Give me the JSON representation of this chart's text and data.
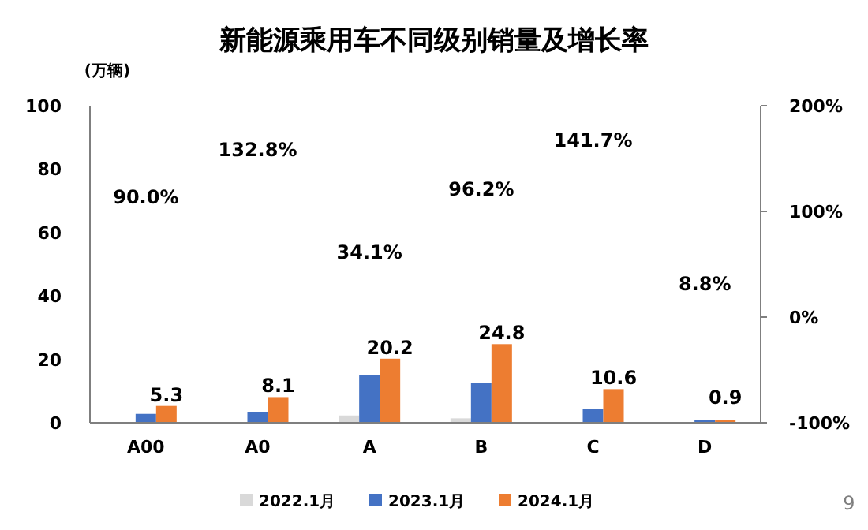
{
  "chart_data": {
    "type": "bar",
    "title": "新能源乘用车不同级别销量及增长率",
    "ylabel": "(万辆)",
    "categories": [
      "A00",
      "A0",
      "A",
      "B",
      "C",
      "D"
    ],
    "series": [
      {
        "name": "2022.1月",
        "color": "#d9d9d9",
        "values": [
          0.2,
          0.2,
          2.3,
          1.4,
          0.2,
          0.1
        ]
      },
      {
        "name": "2023.1月",
        "color": "#4472c4",
        "values": [
          2.8,
          3.4,
          15.0,
          12.6,
          4.4,
          0.8
        ]
      },
      {
        "name": "2024.1月",
        "color": "#ed7d31",
        "values": [
          5.3,
          8.1,
          20.2,
          24.8,
          10.6,
          0.9
        ],
        "value_labels": [
          "5.3",
          "8.1",
          "20.2",
          "24.8",
          "10.6",
          "0.9"
        ]
      }
    ],
    "ylim": [
      0,
      100
    ],
    "yticks": [
      0,
      20,
      40,
      60,
      80,
      100
    ],
    "y2lim": [
      -100,
      200
    ],
    "y2ticks": [
      {
        "value": -100,
        "label": "-100%"
      },
      {
        "value": 0,
        "label": "0%"
      },
      {
        "value": 100,
        "label": "100%"
      },
      {
        "value": 200,
        "label": "200%"
      }
    ],
    "legend": "bottom",
    "grid": false,
    "annotations": [
      "90.0%",
      "132.8%",
      "34.1%",
      "96.2%",
      "141.7%",
      "8.8%",
      "9"
    ]
  }
}
